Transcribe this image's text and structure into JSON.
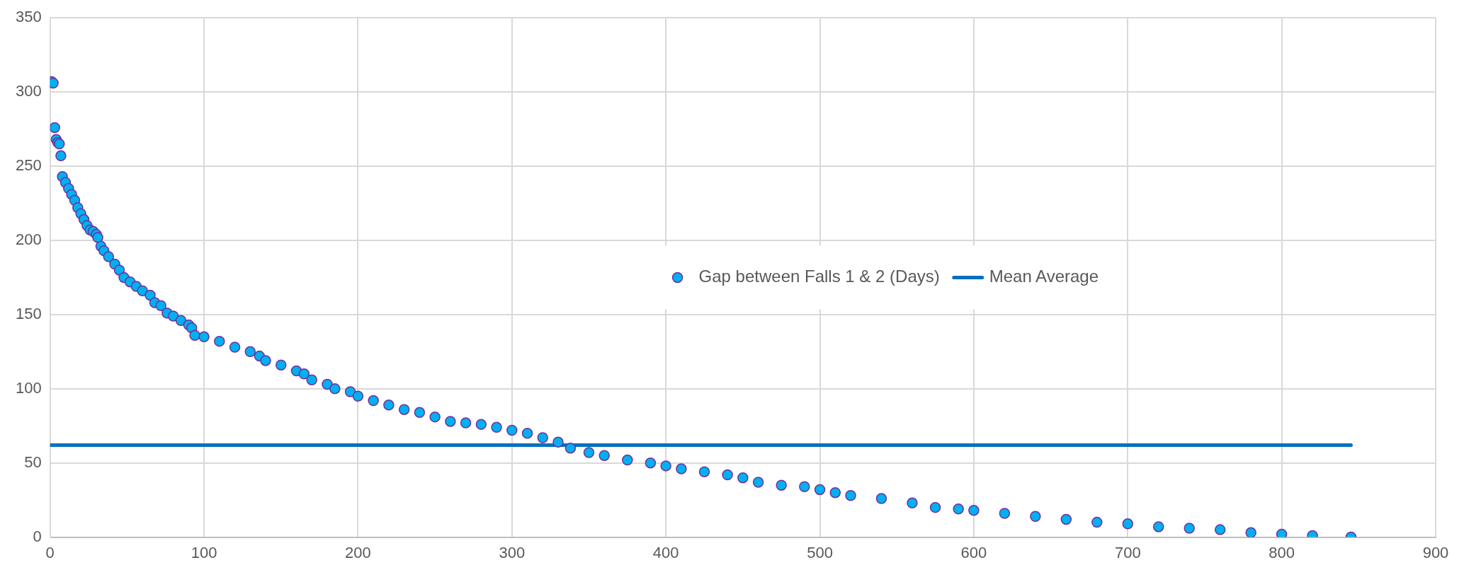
{
  "chart_data": {
    "type": "scatter",
    "xlim": [
      0,
      900
    ],
    "xticks": [
      0,
      100,
      200,
      300,
      400,
      500,
      600,
      700,
      800,
      900
    ],
    "ylim": [
      0,
      350
    ],
    "yticks": [
      0,
      50,
      100,
      150,
      200,
      250,
      300,
      350
    ],
    "grid": true,
    "legend": "center",
    "marker": "circle",
    "series": [
      {
        "name": "Gap between Falls 1 & 2 (Days)",
        "color": "#00b0f0",
        "x": [
          0,
          1,
          2,
          3,
          4,
          5,
          6,
          7,
          8,
          10,
          12,
          14,
          16,
          18,
          20,
          22,
          24,
          26,
          28,
          30,
          31,
          33,
          35,
          38,
          42,
          45,
          48,
          52,
          56,
          60,
          65,
          68,
          72,
          76,
          80,
          85,
          90,
          92,
          94,
          100,
          110,
          120,
          130,
          136,
          140,
          150,
          160,
          165,
          170,
          180,
          185,
          195,
          200,
          210,
          220,
          230,
          240,
          250,
          260,
          270,
          280,
          290,
          300,
          310,
          320,
          330,
          338,
          350,
          360,
          375,
          390,
          400,
          410,
          425,
          440,
          450,
          460,
          475,
          490,
          500,
          510,
          520,
          540,
          560,
          575,
          590,
          600,
          620,
          640,
          660,
          680,
          700,
          720,
          740,
          760,
          780,
          800,
          820,
          845
        ],
        "values": [
          307,
          307,
          306,
          276,
          268,
          266,
          265,
          257,
          243,
          239,
          235,
          231,
          227,
          222,
          218,
          214,
          210,
          207,
          206,
          204,
          202,
          196,
          193,
          189,
          184,
          180,
          175,
          172,
          169,
          166,
          163,
          158,
          156,
          151,
          149,
          146,
          143,
          141,
          136,
          135,
          132,
          128,
          125,
          122,
          119,
          116,
          112,
          110,
          106,
          103,
          100,
          98,
          95,
          92,
          89,
          86,
          84,
          81,
          78,
          77,
          76,
          74,
          72,
          70,
          67,
          64,
          60,
          57,
          55,
          52,
          50,
          48,
          46,
          44,
          42,
          40,
          37,
          35,
          34,
          32,
          30,
          28,
          26,
          23,
          20,
          19,
          18,
          16,
          14,
          12,
          10,
          9,
          7,
          6,
          5,
          3,
          2,
          1,
          0
        ]
      },
      {
        "name": "Mean Average",
        "type": "line",
        "color": "#0070c0",
        "marker": "none",
        "x": [
          0,
          845
        ],
        "values": [
          62,
          62
        ]
      }
    ]
  }
}
